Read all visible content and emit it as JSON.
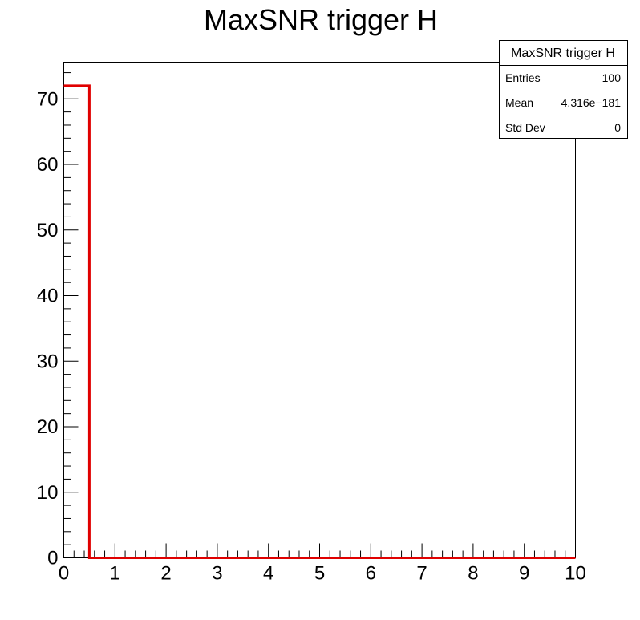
{
  "chart_data": {
    "type": "histogram",
    "title": "MaxSNR trigger H",
    "xlabel": "",
    "ylabel": "",
    "xlim": [
      0,
      10
    ],
    "ylim": [
      0,
      75.6
    ],
    "bins": {
      "count": 20,
      "min": 0,
      "max": 10
    },
    "values": [
      72,
      0,
      0,
      0,
      0,
      0,
      0,
      0,
      0,
      0,
      0,
      0,
      0,
      0,
      0,
      0,
      0,
      0,
      0,
      0
    ],
    "line_color": "#e00000",
    "x_ticks": [
      0,
      1,
      2,
      3,
      4,
      5,
      6,
      7,
      8,
      9,
      10
    ],
    "y_ticks": [
      0,
      10,
      20,
      30,
      40,
      50,
      60,
      70
    ],
    "x_tick_labels": [
      "0",
      "1",
      "2",
      "3",
      "4",
      "5",
      "6",
      "7",
      "8",
      "9",
      "10"
    ],
    "y_tick_labels": [
      "0",
      "10",
      "20",
      "30",
      "40",
      "50",
      "60",
      "70"
    ],
    "stats_box": {
      "title": "MaxSNR trigger H",
      "rows": [
        {
          "label": "Entries",
          "value": "100"
        },
        {
          "label": "Mean",
          "value": "4.316e−181"
        },
        {
          "label": "Std Dev",
          "value": "0"
        }
      ],
      "placement": "top-right"
    },
    "grid": false
  }
}
